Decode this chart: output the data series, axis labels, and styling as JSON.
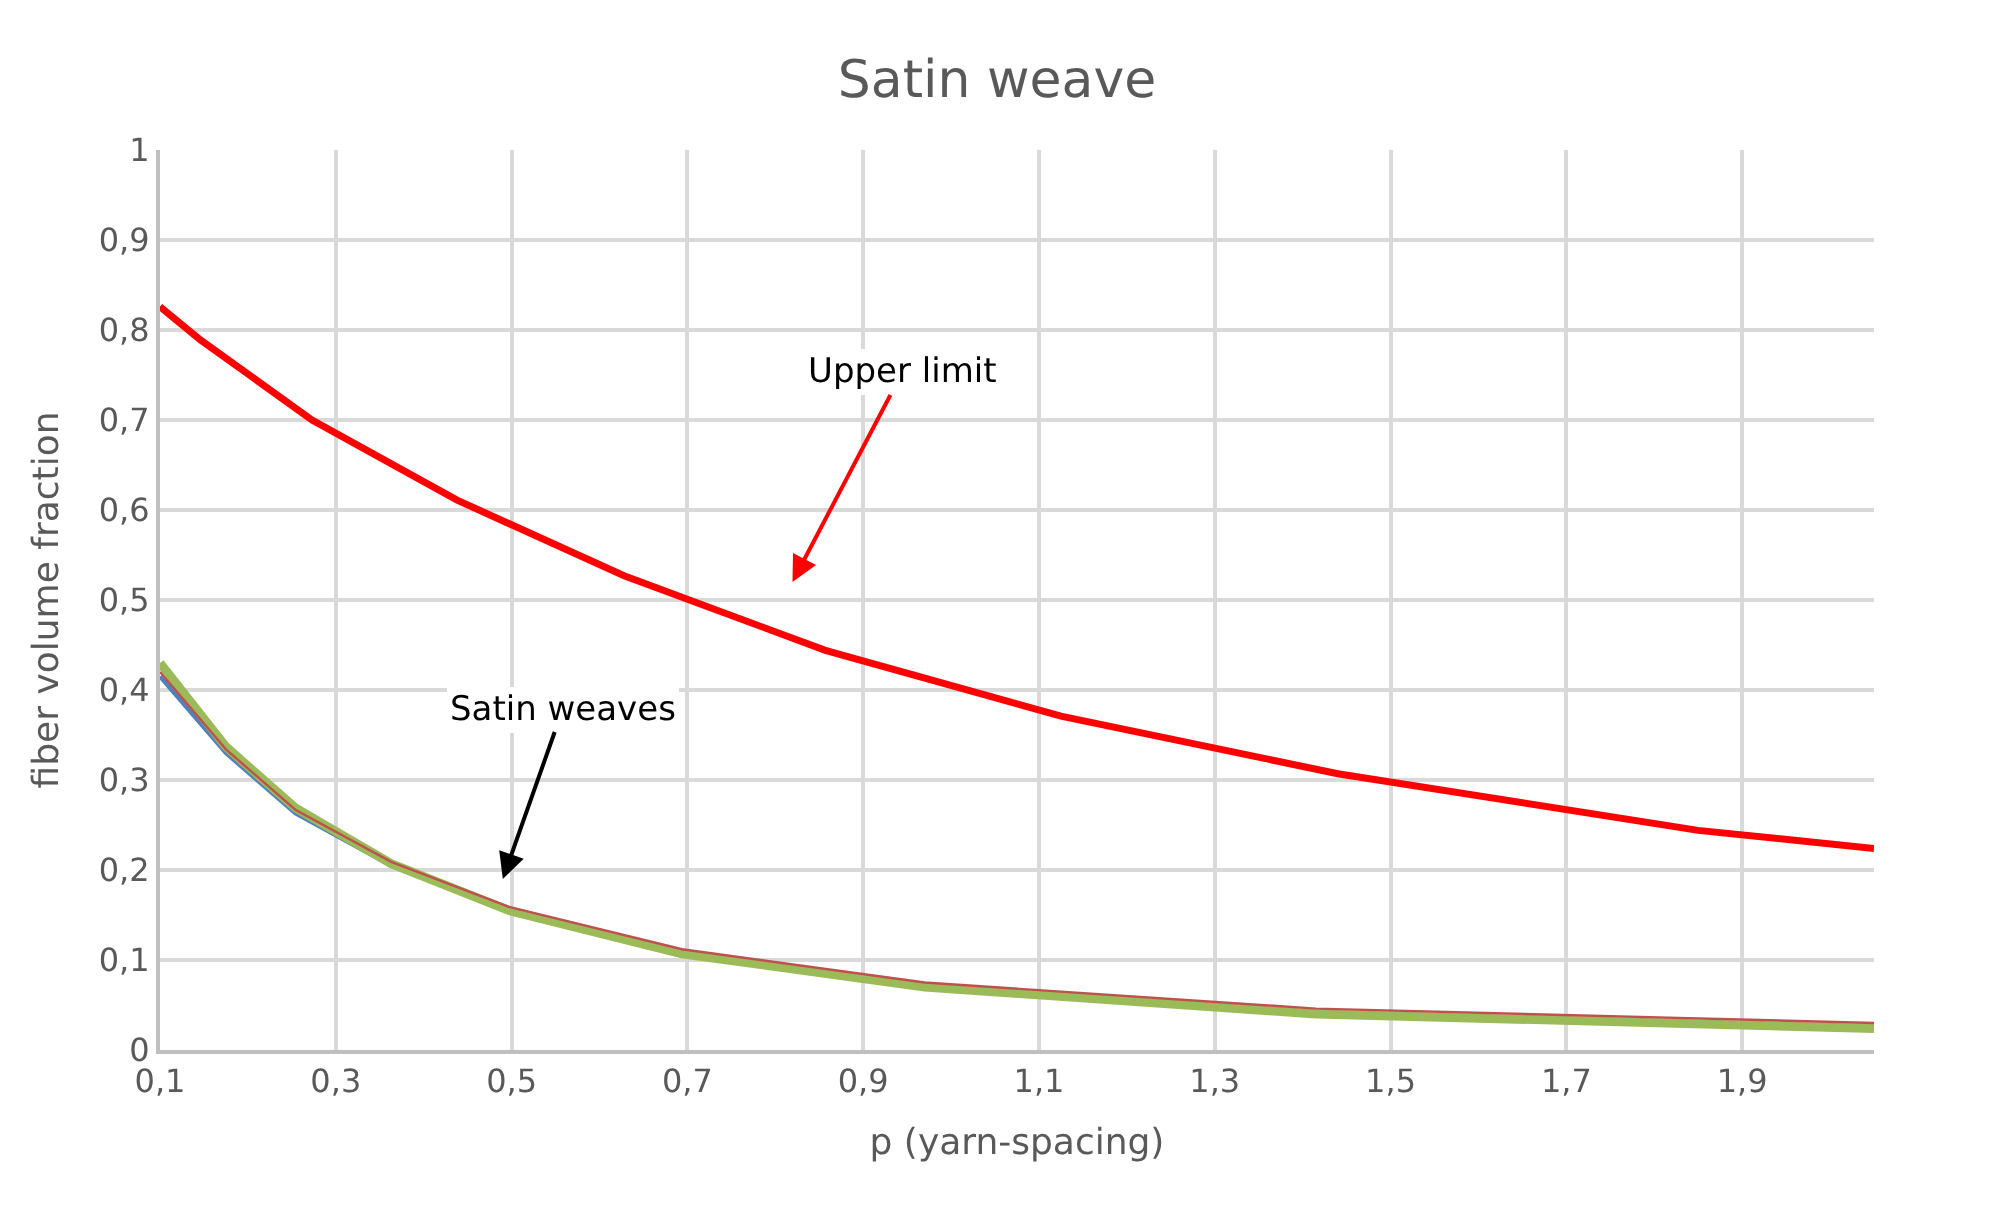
{
  "chart_data": {
    "type": "line",
    "title": "Satin weave",
    "xlabel": "p (yarn-spacing)",
    "ylabel": "fiber volume fraction",
    "xlim": [
      0.1,
      2.05
    ],
    "xticks": [
      {
        "value": 0.1,
        "label": "0,1"
      },
      {
        "value": 0.3,
        "label": "0,3"
      },
      {
        "value": 0.5,
        "label": "0,5"
      },
      {
        "value": 0.7,
        "label": "0,7"
      },
      {
        "value": 0.9,
        "label": "0,9"
      },
      {
        "value": 1.1,
        "label": "1,1"
      },
      {
        "value": 1.3,
        "label": "1,3"
      },
      {
        "value": 1.5,
        "label": "1,5"
      },
      {
        "value": 1.7,
        "label": "1,7"
      },
      {
        "value": 1.9,
        "label": "1,9"
      }
    ],
    "ylim": [
      0,
      1
    ],
    "yticks": [
      0,
      {
        "value": 0.1,
        "label": "0,1"
      },
      {
        "value": 0.2,
        "label": "0,2"
      },
      {
        "value": 0.3,
        "label": "0,3"
      },
      {
        "value": 0.4,
        "label": "0,4"
      },
      {
        "value": 0.5,
        "label": "0,5"
      },
      {
        "value": 0.6,
        "label": "0,6"
      },
      {
        "value": 0.7,
        "label": "0,7"
      },
      {
        "value": 0.8,
        "label": "0,8"
      },
      {
        "value": 0.9,
        "label": "0,9"
      },
      1
    ],
    "grid": true,
    "legend": false,
    "marker": "none",
    "line_style": "solid",
    "series": [
      {
        "color": "#ff0000",
        "x": [
          0.1,
          0.146,
          0.273,
          0.438,
          0.628,
          0.857,
          1.125,
          1.44,
          1.85,
          2.05
        ],
        "values": [
          0.826,
          0.789,
          0.7,
          0.611,
          0.527,
          0.444,
          0.371,
          0.307,
          0.244,
          0.224
        ]
      },
      {
        "color": "#4f81bd",
        "x": [
          0.1,
          0.175,
          0.254,
          0.363
        ],
        "values": [
          0.415,
          0.33,
          0.263,
          0.205
        ]
      },
      {
        "color": "#9bbb59",
        "x": [
          0.1,
          0.175,
          0.254,
          0.363,
          0.497,
          0.694,
          0.97,
          1.415,
          2.05
        ],
        "values": [
          0.43,
          0.337,
          0.269,
          0.207,
          0.155,
          0.107,
          0.07,
          0.04,
          0.024
        ]
      },
      {
        "color": "#c0504d",
        "x": [
          0.1,
          0.175,
          0.254,
          0.363,
          0.497,
          0.694,
          0.97,
          1.415,
          2.05
        ],
        "values": [
          0.42,
          0.334,
          0.267,
          0.209,
          0.159,
          0.112,
          0.075,
          0.046,
          0.03
        ]
      }
    ],
    "annotations": [
      "Upper limit",
      "Satin weaves"
    ]
  }
}
